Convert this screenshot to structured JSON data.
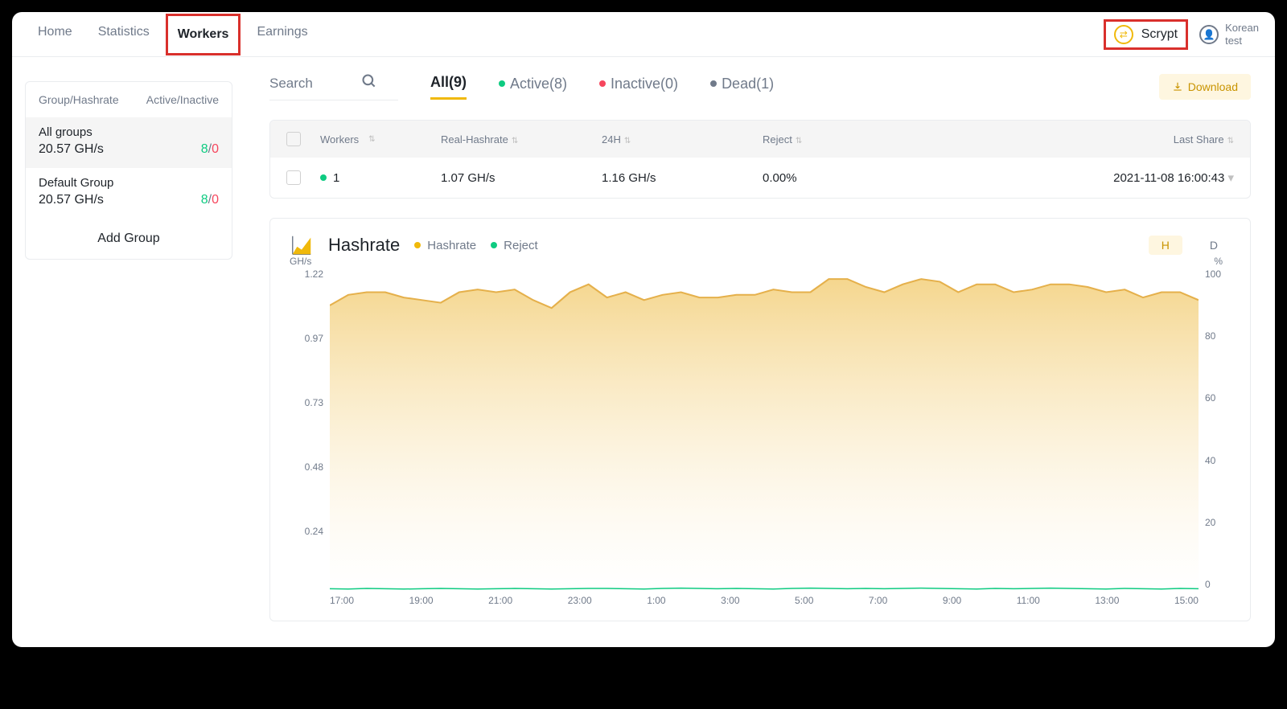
{
  "nav": {
    "items": [
      "Home",
      "Statistics",
      "Workers",
      "Earnings"
    ],
    "active_index": 2
  },
  "header": {
    "algo_label": "Scrypt",
    "user_line1": "Korean",
    "user_line2": "test"
  },
  "sidebar": {
    "head_left": "Group/Hashrate",
    "head_right": "Active/Inactive",
    "groups": [
      {
        "name": "All groups",
        "hashrate": "20.57 GH/s",
        "active": "8",
        "inactive": "0",
        "selected": true
      },
      {
        "name": "Default Group",
        "hashrate": "20.57 GH/s",
        "active": "8",
        "inactive": "0",
        "selected": false
      }
    ],
    "add_label": "Add Group"
  },
  "filters": {
    "search_placeholder": "Search",
    "tabs": [
      {
        "label": "All(9)",
        "dot": null,
        "active": true
      },
      {
        "label": "Active(8)",
        "dot": "green",
        "active": false
      },
      {
        "label": "Inactive(0)",
        "dot": "red",
        "active": false
      },
      {
        "label": "Dead(1)",
        "dot": "grey",
        "active": false
      }
    ],
    "download_label": "Download"
  },
  "table": {
    "columns": [
      "Workers",
      "Real-Hashrate",
      "24H",
      "Reject",
      "Last Share"
    ],
    "rows": [
      {
        "worker": "1",
        "status": "green",
        "real": "1.07 GH/s",
        "h24": "1.16 GH/s",
        "reject": "0.00%",
        "last": "2021-11-08 16:00:43"
      }
    ]
  },
  "chart": {
    "title": "Hashrate",
    "legend": [
      {
        "label": "Hashrate",
        "color": "#f0b90b"
      },
      {
        "label": "Reject",
        "color": "#0ecb81"
      }
    ],
    "periods": [
      {
        "label": "H",
        "active": true
      },
      {
        "label": "D",
        "active": false
      }
    ],
    "y_left_unit": "GH/s",
    "y_right_unit": "%",
    "y_left_ticks": [
      "1.22",
      "0.97",
      "0.73",
      "0.48",
      "0.24",
      ""
    ],
    "y_right_ticks": [
      "100",
      "80",
      "60",
      "40",
      "20",
      "0"
    ],
    "x_ticks": [
      "17:00",
      "19:00",
      "21:00",
      "23:00",
      "1:00",
      "3:00",
      "5:00",
      "7:00",
      "9:00",
      "11:00",
      "13:00",
      "15:00"
    ],
    "hashrate_series": {
      "color_stroke": "#e5b04b",
      "color_fill_top": "#f3cf7a",
      "color_fill_bottom": "#ffffff",
      "ylim": [
        0,
        1.22
      ],
      "values": [
        1.08,
        1.12,
        1.13,
        1.13,
        1.11,
        1.1,
        1.09,
        1.13,
        1.14,
        1.13,
        1.14,
        1.1,
        1.07,
        1.13,
        1.16,
        1.11,
        1.13,
        1.1,
        1.12,
        1.13,
        1.11,
        1.11,
        1.12,
        1.12,
        1.14,
        1.13,
        1.13,
        1.18,
        1.18,
        1.15,
        1.13,
        1.16,
        1.18,
        1.17,
        1.13,
        1.16,
        1.16,
        1.13,
        1.14,
        1.16,
        1.16,
        1.15,
        1.13,
        1.14,
        1.11,
        1.13,
        1.13,
        1.1
      ]
    },
    "reject_series": {
      "color_stroke": "#0ecb81",
      "ylim": [
        0,
        100
      ],
      "values": [
        0.4,
        0.3,
        0.5,
        0.4,
        0.3,
        0.4,
        0.5,
        0.4,
        0.3,
        0.4,
        0.5,
        0.4,
        0.3,
        0.4,
        0.5,
        0.5,
        0.4,
        0.3,
        0.5,
        0.6,
        0.5,
        0.4,
        0.5,
        0.4,
        0.3,
        0.5,
        0.6,
        0.5,
        0.4,
        0.5,
        0.4,
        0.5,
        0.6,
        0.5,
        0.4,
        0.3,
        0.5,
        0.4,
        0.5,
        0.6,
        0.5,
        0.4,
        0.3,
        0.5,
        0.4,
        0.3,
        0.5,
        0.4
      ]
    }
  }
}
